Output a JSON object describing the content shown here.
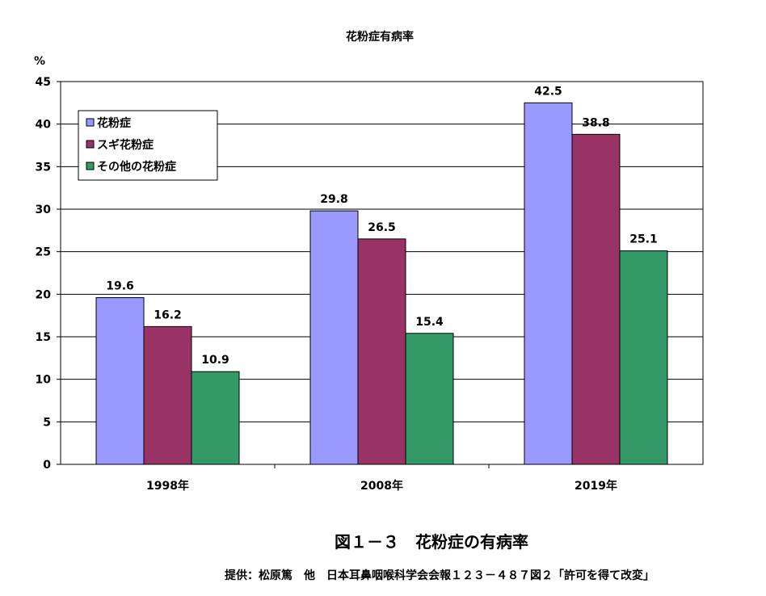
{
  "chart_data": {
    "type": "bar",
    "title": "花粉症有病率",
    "ylabel": "%",
    "xlabel": "",
    "categories": [
      "1998年",
      "2008年",
      "2019年"
    ],
    "ylim": [
      0,
      45
    ],
    "yticks": [
      0,
      5,
      10,
      15,
      20,
      25,
      30,
      35,
      40,
      45
    ],
    "grid": true,
    "legend_placement": "top-left",
    "series": [
      {
        "name": "花粉症",
        "values": [
          19.6,
          29.8,
          42.5
        ],
        "color": "#9999ff"
      },
      {
        "name": "スギ花粉症",
        "values": [
          16.2,
          26.5,
          38.8
        ],
        "color": "#993366"
      },
      {
        "name": "その他の花粉症",
        "values": [
          10.9,
          15.4,
          25.1
        ],
        "color": "#339966"
      }
    ],
    "data_labels": [
      [
        "19.6",
        "29.8",
        "42.5"
      ],
      [
        "16.2",
        "26.5",
        "38.8"
      ],
      [
        "10.9",
        "15.4",
        "25.1"
      ]
    ]
  },
  "figure_caption": "図１－３　花粉症の有病率",
  "source_caption": "提供：松原篤　他　日本耳鼻咽喉科学会会報１２３－４８７図２「許可を得て改変」"
}
